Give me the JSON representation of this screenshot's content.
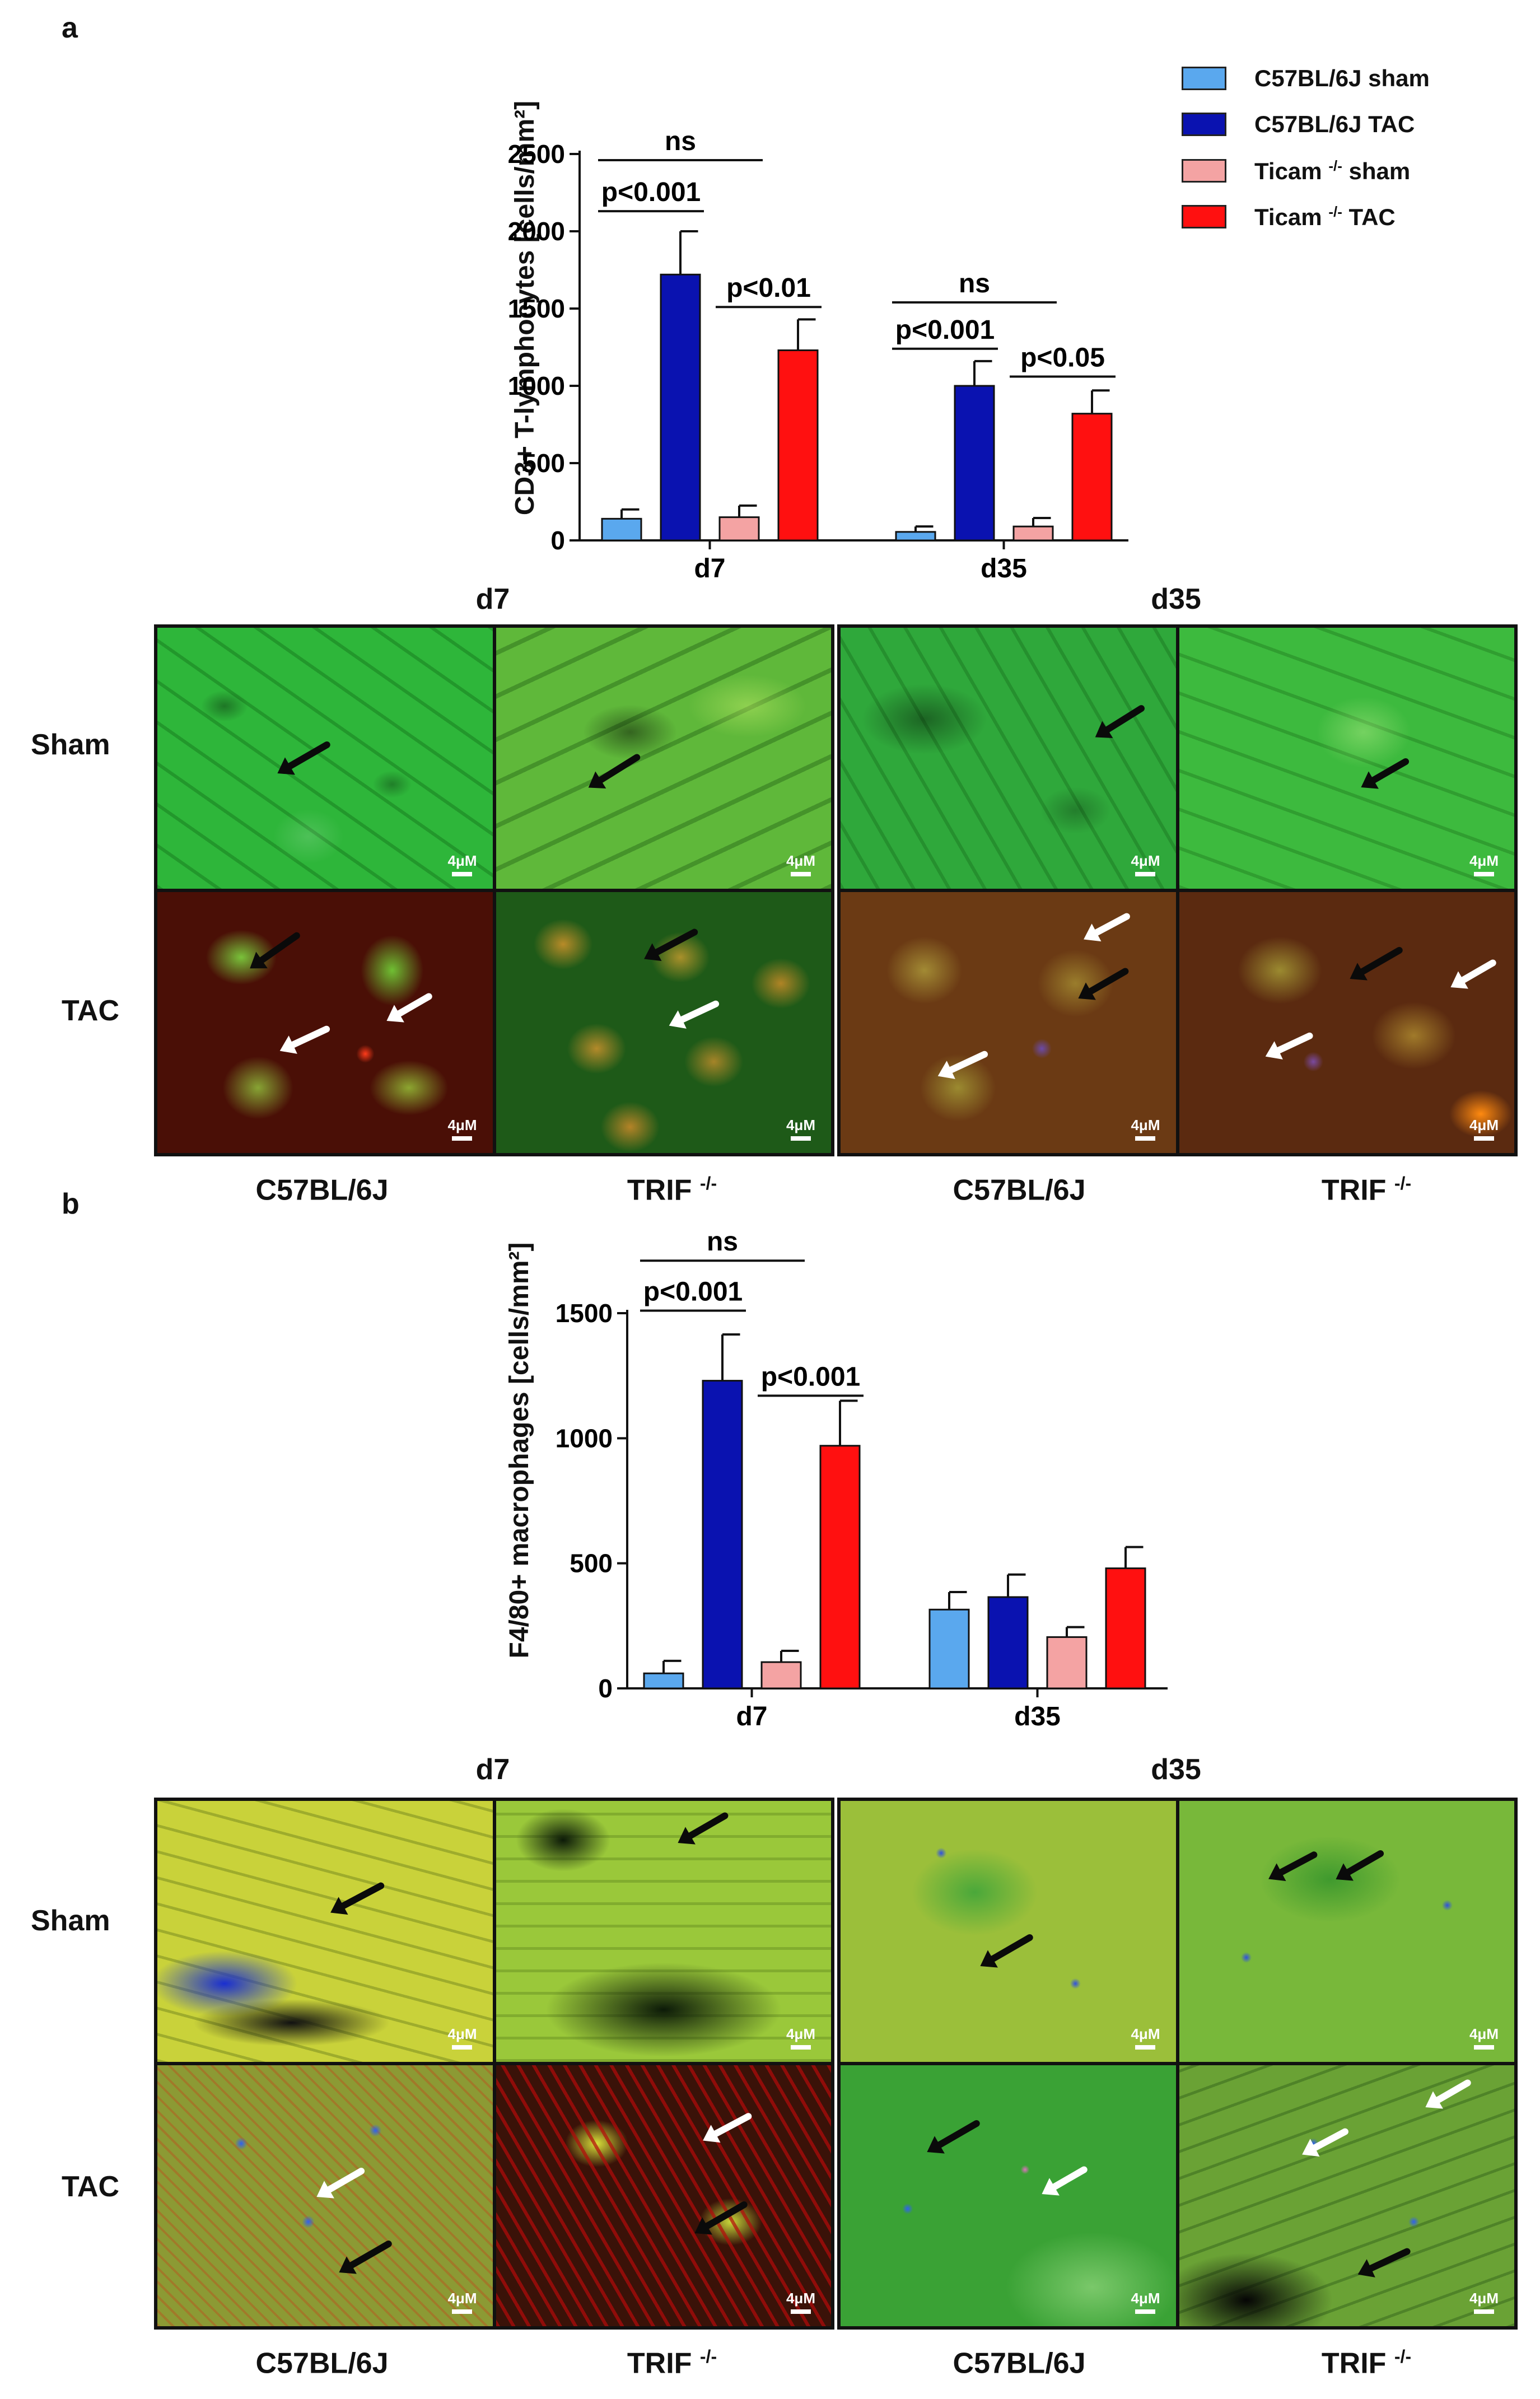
{
  "panel_a": {
    "letter": "a",
    "legend": [
      {
        "label": "C57BL/6J sham",
        "color": "#5aa8ee"
      },
      {
        "label": "C57BL/6J TAC",
        "color": "#0a12b0"
      },
      {
        "label": "Ticam",
        "sup": "-/-",
        "suffix": "sham",
        "color": "#f4a3a3"
      },
      {
        "label": "Ticam",
        "sup": "-/-",
        "suffix": "TAC",
        "color": "#ff1010"
      }
    ],
    "micro": {
      "group_titles": [
        "d7",
        "d35"
      ],
      "row_labels": [
        "Sham",
        "TAC"
      ],
      "col_labels": [
        "C57BL/6J",
        "TRIF",
        "C57BL/6J",
        "TRIF"
      ],
      "col_sup": [
        "",
        "-/-",
        "",
        "-/-"
      ],
      "scale_label": "4μM"
    }
  },
  "panel_b": {
    "letter": "b",
    "micro": {
      "group_titles": [
        "d7",
        "d35"
      ],
      "row_labels": [
        "Sham",
        "TAC"
      ],
      "col_labels": [
        "C57BL/6J",
        "TRIF",
        "C57BL/6J",
        "TRIF"
      ],
      "col_sup": [
        "",
        "-/-",
        "",
        "-/-"
      ],
      "scale_label": "4μM"
    }
  },
  "chart_data": [
    {
      "type": "bar",
      "panel": "a",
      "ylabel": "CD3+ T-lymphocytes [cells/mm²]",
      "ylim": [
        0,
        2500
      ],
      "yticks": [
        0,
        500,
        1000,
        1500,
        2000,
        2500
      ],
      "categories": [
        "d7",
        "d35"
      ],
      "series": [
        {
          "name": "C57BL/6J sham",
          "color": "#5aa8ee",
          "values": [
            140,
            55
          ],
          "errors": [
            60,
            35
          ]
        },
        {
          "name": "C57BL/6J TAC",
          "color": "#0a12b0",
          "values": [
            1720,
            1000
          ],
          "errors": [
            280,
            160
          ]
        },
        {
          "name": "Ticam -/- sham",
          "color": "#f4a3a3",
          "values": [
            150,
            90
          ],
          "errors": [
            75,
            55
          ]
        },
        {
          "name": "Ticam -/- TAC",
          "color": "#ff1010",
          "values": [
            1230,
            820
          ],
          "errors": [
            200,
            150
          ]
        }
      ],
      "annotations": [
        {
          "text": "ns",
          "category": 0,
          "from": 0,
          "to": 2,
          "level": 2460
        },
        {
          "text": "p<0.001",
          "category": 0,
          "from": 0,
          "to": 1,
          "level": 2130
        },
        {
          "text": "p<0.01",
          "category": 0,
          "from": 2,
          "to": 3,
          "level": 1510
        },
        {
          "text": "ns",
          "category": 1,
          "from": 0,
          "to": 2,
          "level": 1540
        },
        {
          "text": "p<0.001",
          "category": 1,
          "from": 0,
          "to": 1,
          "level": 1240
        },
        {
          "text": "p<0.05",
          "category": 1,
          "from": 2,
          "to": 3,
          "level": 1060
        }
      ]
    },
    {
      "type": "bar",
      "panel": "b",
      "ylabel": "F4/80+ macrophages [cells/mm²]",
      "ylim": [
        0,
        1500
      ],
      "yticks": [
        0,
        500,
        1000,
        1500
      ],
      "categories": [
        "d7",
        "d35"
      ],
      "series": [
        {
          "name": "C57BL/6J sham",
          "color": "#5aa8ee",
          "values": [
            60,
            315
          ],
          "errors": [
            50,
            70
          ]
        },
        {
          "name": "C57BL/6J TAC",
          "color": "#0a12b0",
          "values": [
            1230,
            365
          ],
          "errors": [
            185,
            90
          ]
        },
        {
          "name": "Ticam -/- sham",
          "color": "#f4a3a3",
          "values": [
            105,
            205
          ],
          "errors": [
            45,
            40
          ]
        },
        {
          "name": "Ticam -/- TAC",
          "color": "#ff1010",
          "values": [
            970,
            480
          ],
          "errors": [
            180,
            85
          ]
        }
      ],
      "annotations": [
        {
          "text": "ns",
          "category": 0,
          "from": 0,
          "to": 2,
          "level": 1710
        },
        {
          "text": "p<0.001",
          "category": 0,
          "from": 0,
          "to": 1,
          "level": 1510
        },
        {
          "text": "p<0.001",
          "category": 0,
          "from": 2,
          "to": 3,
          "level": 1170
        }
      ]
    }
  ]
}
